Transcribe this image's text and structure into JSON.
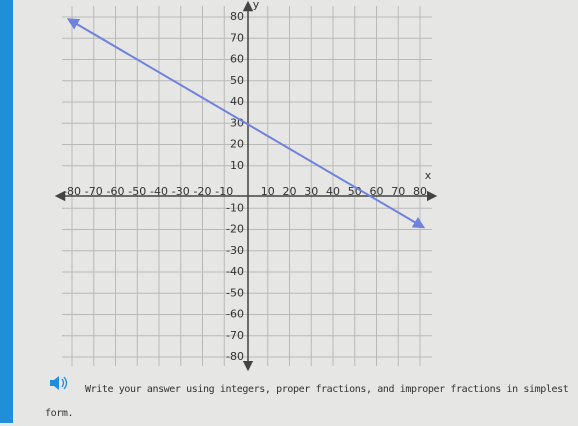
{
  "chart_data": {
    "type": "line",
    "x_label": "x",
    "y_label": "y",
    "x": [
      -80,
      80
    ],
    "series": [
      {
        "color": "#6f82dc",
        "values": [
          78,
          -18
        ]
      }
    ],
    "xlim": [
      -80,
      80
    ],
    "ylim": [
      -80,
      80
    ],
    "xticks": [
      -80,
      -70,
      -60,
      -50,
      -40,
      -30,
      -20,
      -10,
      10,
      20,
      30,
      40,
      50,
      60,
      70,
      80
    ],
    "yticks": [
      -80,
      -70,
      -60,
      -50,
      -40,
      -30,
      -20,
      -10,
      10,
      20,
      30,
      40,
      50,
      60,
      70,
      80
    ],
    "grid": true
  },
  "instructions": "Write your answer using integers, proper fractions, and improper fractions in simplest form."
}
